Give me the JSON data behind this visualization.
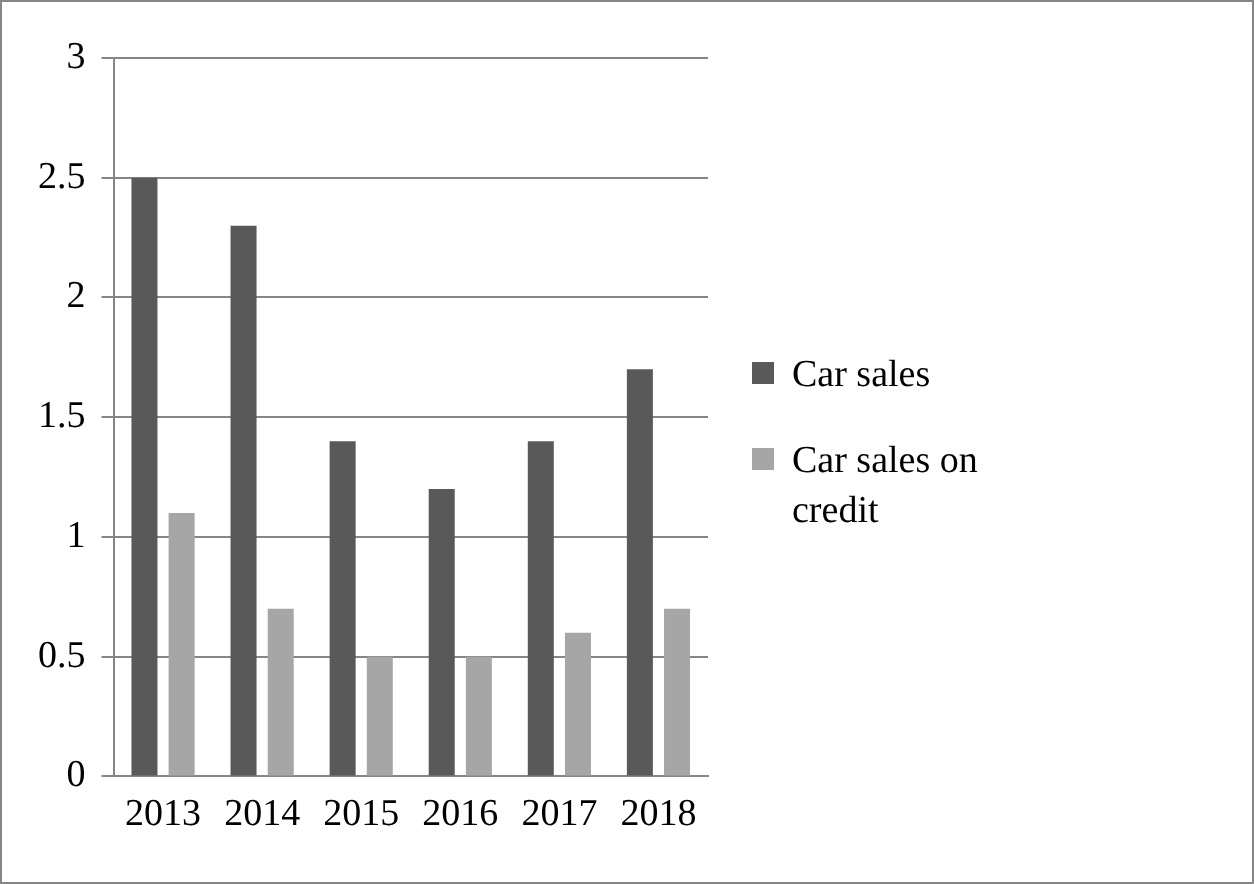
{
  "chart_data": {
    "type": "bar",
    "categories": [
      "2013",
      "2014",
      "2015",
      "2016",
      "2017",
      "2018"
    ],
    "series": [
      {
        "name": "Car sales",
        "color": "#595959",
        "values": [
          2.5,
          2.3,
          1.4,
          1.2,
          1.4,
          1.7
        ]
      },
      {
        "name": "Car sales on credit",
        "color": "#a6a6a6",
        "values": [
          1.1,
          0.7,
          0.5,
          0.5,
          0.6,
          0.7
        ]
      }
    ],
    "ylim": [
      0,
      3
    ],
    "yticks": [
      0,
      0.5,
      1,
      1.5,
      2,
      2.5,
      3
    ],
    "grid": "y",
    "legend": "right"
  }
}
